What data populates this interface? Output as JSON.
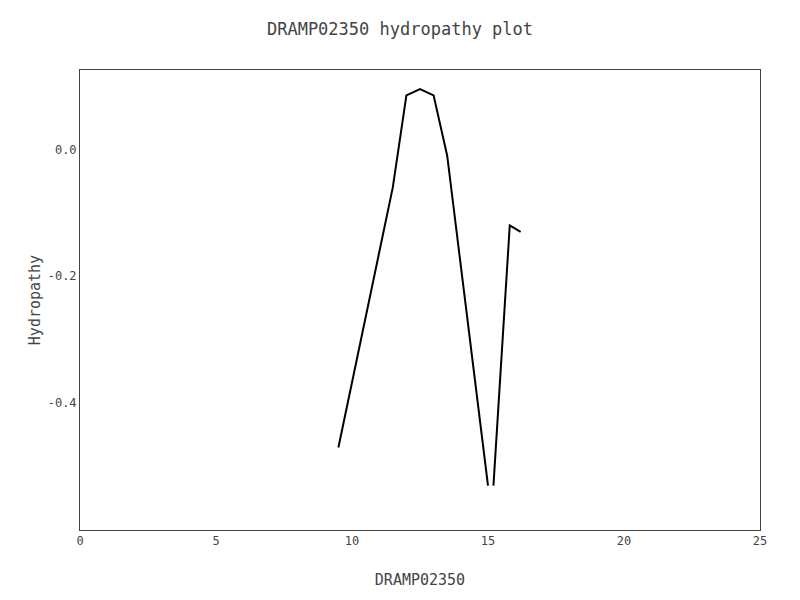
{
  "chart_data": {
    "type": "line",
    "title": "DRAMP02350 hydropathy plot",
    "xlabel": "DRAMP02350",
    "ylabel": "Hydropathy",
    "xlim": [
      0,
      25
    ],
    "ylim": [
      -0.6,
      0.125
    ],
    "xticks": [
      0,
      5,
      10,
      15,
      20,
      25
    ],
    "yticks": [
      {
        "value": 0.0,
        "label": "0.0"
      },
      -0.2,
      -0.4
    ],
    "grid": false,
    "series": [
      {
        "color": "black",
        "x": [
          9.5,
          11.5,
          12.0,
          12.5,
          13.0,
          13.5,
          15.0
        ],
        "values": [
          -0.47,
          -0.06,
          0.085,
          0.095,
          0.085,
          -0.01,
          -0.53
        ]
      },
      {
        "color": "black",
        "x": [
          15.2,
          15.8,
          16.2
        ],
        "values": [
          -0.53,
          -0.12,
          -0.13
        ]
      }
    ]
  }
}
